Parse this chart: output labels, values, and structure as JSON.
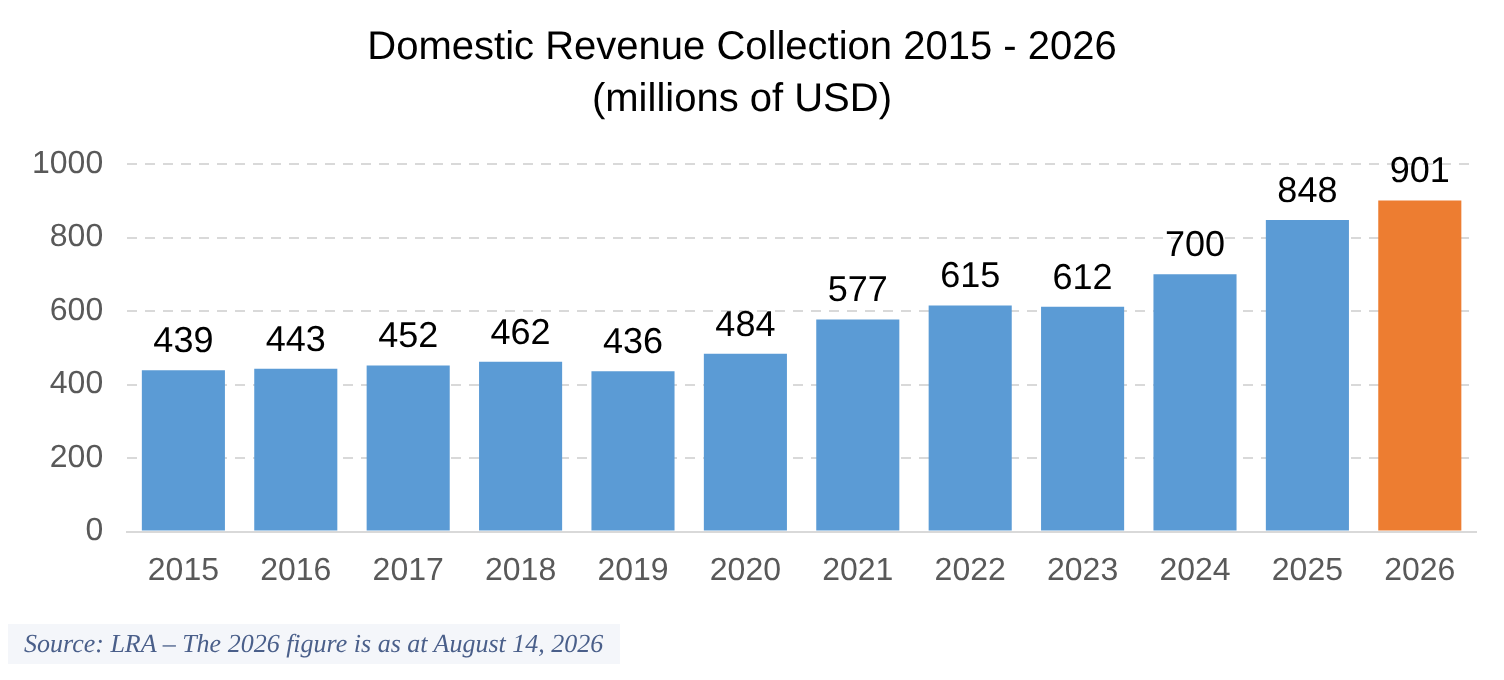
{
  "chart_data": {
    "type": "bar",
    "title": "Domestic Revenue Collection 2015 - 2026",
    "subtitle": "(millions of USD)",
    "categories": [
      "2015",
      "2016",
      "2017",
      "2018",
      "2019",
      "2020",
      "2021",
      "2022",
      "2023",
      "2024",
      "2025",
      "2026"
    ],
    "values": [
      439,
      443,
      452,
      462,
      436,
      484,
      577,
      615,
      612,
      700,
      848,
      901
    ],
    "colors": [
      "#5b9bd5",
      "#5b9bd5",
      "#5b9bd5",
      "#5b9bd5",
      "#5b9bd5",
      "#5b9bd5",
      "#5b9bd5",
      "#5b9bd5",
      "#5b9bd5",
      "#5b9bd5",
      "#5b9bd5",
      "#ed7d31"
    ],
    "ylim": [
      0,
      1000
    ],
    "yticks": [
      0,
      200,
      400,
      600,
      800,
      1000
    ],
    "grid": "y",
    "legend": false,
    "data_labels": true,
    "annotations": [
      "Source: LRA – The 2026 figure is as at August 14, 2026"
    ]
  }
}
